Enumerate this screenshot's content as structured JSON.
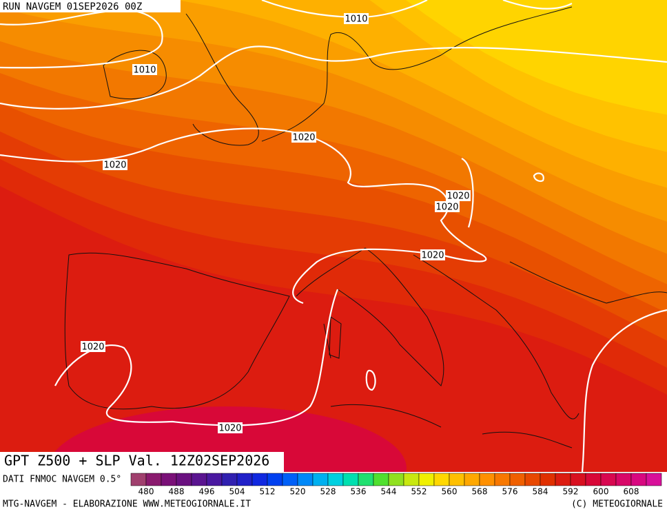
{
  "header": {
    "run": "RUN NAVGEM 01SEP2026 00Z"
  },
  "isobar_labels": [
    1010,
    1010,
    1020,
    1020,
    1020,
    1020,
    1020,
    1020,
    1020
  ],
  "title": "GPT Z500 + SLP Val. 12Z02SEP2026",
  "source": "DATI FNMOC NAVGEM 0.5°",
  "colorbar": {
    "colors": [
      "#a0406e",
      "#8a1a6e",
      "#7a1078",
      "#6a1080",
      "#5a1490",
      "#4a18a0",
      "#3020b0",
      "#2020c8",
      "#1028e0",
      "#0040f0",
      "#0060f8",
      "#0088f8",
      "#00b0f0",
      "#00d0e0",
      "#00e0b0",
      "#20e070",
      "#50e030",
      "#90e020",
      "#c8e810",
      "#f0f000",
      "#ffd800",
      "#ffc000",
      "#ffa800",
      "#ff9000",
      "#f87800",
      "#f06000",
      "#e84800",
      "#e03000",
      "#dc1c10",
      "#d81020",
      "#d80838",
      "#d80850",
      "#d80868",
      "#d80880",
      "#d8109a"
    ],
    "labels": [
      480,
      488,
      496,
      504,
      512,
      520,
      528,
      536,
      544,
      552,
      560,
      568,
      576,
      584,
      592,
      600,
      608
    ]
  },
  "footer": {
    "left": "MTG-NAVGEM - ELABORAZIONE WWW.METEOGIORNALE.IT",
    "right": "(C) METEOGIORNALE"
  }
}
